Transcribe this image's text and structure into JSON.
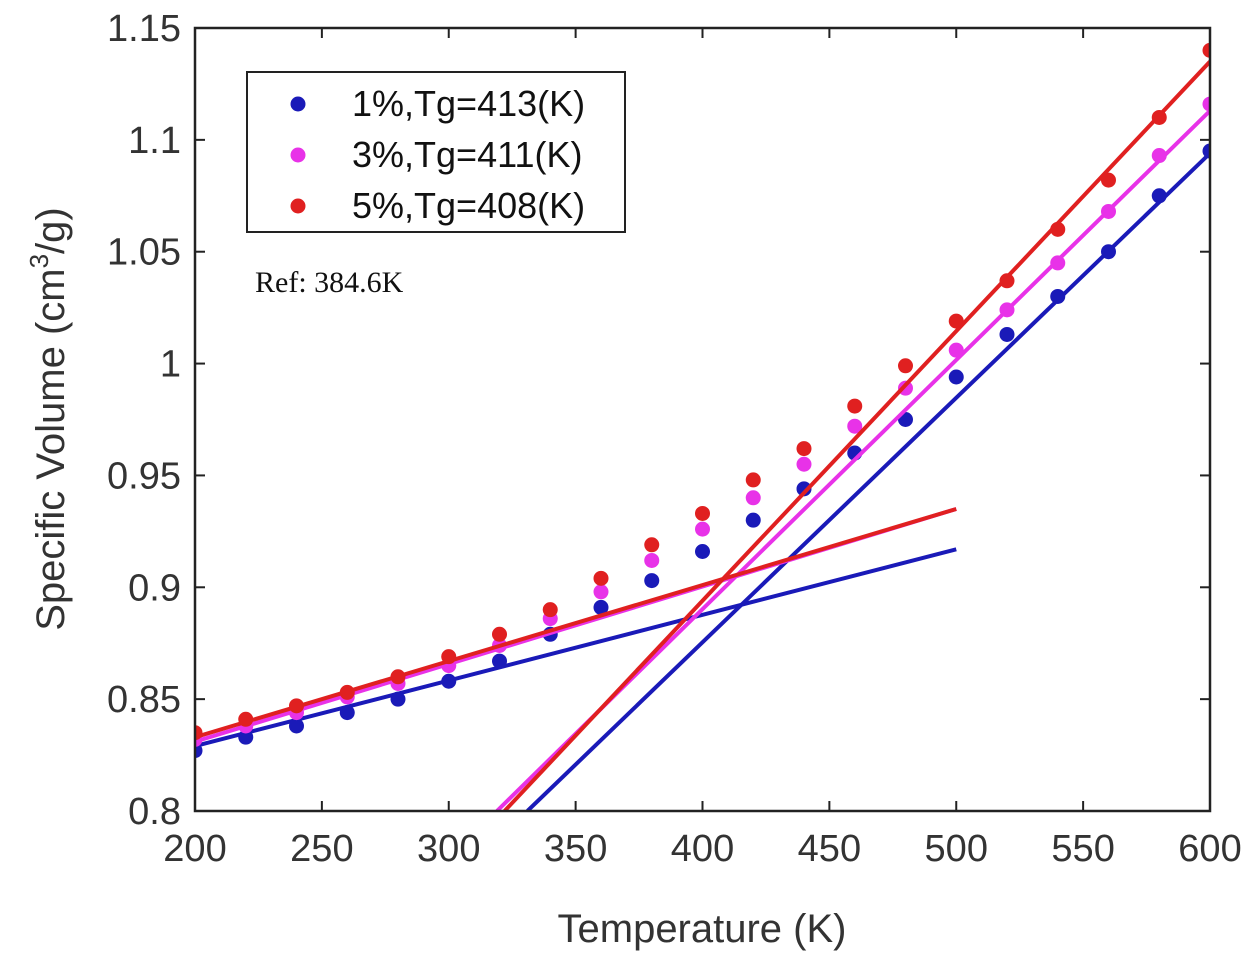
{
  "chart_data": {
    "type": "scatter",
    "title": "",
    "xlabel": "Temperature (K)",
    "ylabel": "Specific Volume (cm³/g)",
    "ylabel_parts": {
      "before": "Specific Volume (cm",
      "sup": "3",
      "after": "/g)"
    },
    "xlim": [
      200,
      600
    ],
    "ylim": [
      0.8,
      1.15
    ],
    "xticks": [
      200,
      250,
      300,
      350,
      400,
      450,
      500,
      550,
      600
    ],
    "yticks": [
      0.8,
      0.85,
      0.9,
      0.95,
      1.0,
      1.05,
      1.1,
      1.15
    ],
    "ytick_labels": [
      "0.8",
      "0.85",
      "0.9",
      "0.95",
      "1",
      "1.05",
      "1.1",
      "1.15"
    ],
    "legend_position": "top-left",
    "annotation": "Ref: 384.6K",
    "x": [
      200,
      220,
      240,
      260,
      280,
      300,
      320,
      340,
      360,
      380,
      400,
      420,
      440,
      460,
      480,
      500,
      520,
      540,
      560,
      580,
      600
    ],
    "series": [
      {
        "name": "1%,Tg=413(K)",
        "color": "#1a1ab8",
        "values": [
          0.827,
          0.833,
          0.838,
          0.844,
          0.85,
          0.858,
          0.867,
          0.879,
          0.891,
          0.903,
          0.916,
          0.93,
          0.944,
          0.96,
          0.975,
          0.994,
          1.013,
          1.03,
          1.05,
          1.075,
          1.095
        ],
        "glassy_fit": {
          "x": [
            200,
            500
          ],
          "y": [
            0.829,
            0.917
          ]
        },
        "melt_fit": {
          "x": [
            331,
            600
          ],
          "y": [
            0.8,
            1.094
          ]
        }
      },
      {
        "name": "3%,Tg=411(K)",
        "color": "#e832e8",
        "values": [
          0.832,
          0.838,
          0.844,
          0.851,
          0.857,
          0.865,
          0.874,
          0.886,
          0.898,
          0.912,
          0.926,
          0.94,
          0.955,
          0.972,
          0.989,
          1.006,
          1.024,
          1.045,
          1.068,
          1.093,
          1.116
        ],
        "glassy_fit": {
          "x": [
            200,
            500
          ],
          "y": [
            0.831,
            0.935
          ]
        },
        "melt_fit": {
          "x": [
            319,
            600
          ],
          "y": [
            0.8,
            1.113
          ]
        }
      },
      {
        "name": "5%,Tg=408(K)",
        "color": "#e02020",
        "values": [
          0.835,
          0.841,
          0.847,
          0.853,
          0.86,
          0.869,
          0.879,
          0.89,
          0.904,
          0.919,
          0.933,
          0.948,
          0.962,
          0.981,
          0.999,
          1.019,
          1.037,
          1.06,
          1.082,
          1.11,
          1.14
        ],
        "glassy_fit": {
          "x": [
            200,
            500
          ],
          "y": [
            0.833,
            0.935
          ]
        },
        "melt_fit": {
          "x": [
            322,
            600
          ],
          "y": [
            0.8,
            1.135
          ]
        }
      }
    ]
  }
}
